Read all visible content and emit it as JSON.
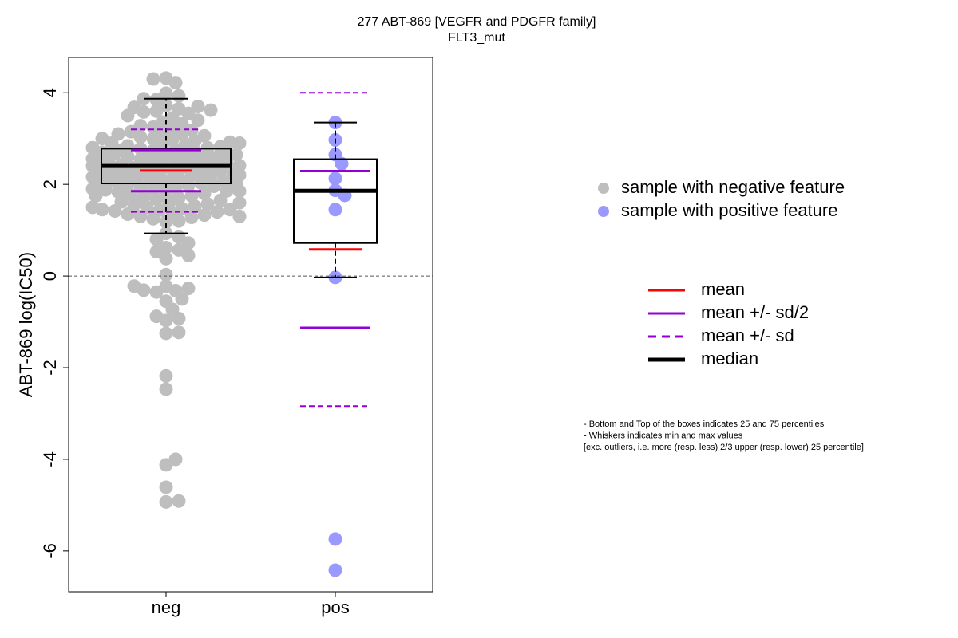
{
  "chart_data": {
    "type": "box",
    "title": "277 ABT-869 [VEGFR and PDGFR family]",
    "subtitle": "FLT3_mut",
    "y_label": "ABT-869 log(IC50)",
    "categories": [
      "neg",
      "pos"
    ],
    "ylim": [
      -6.89,
      4.77
    ],
    "yticks": [
      -6,
      -4,
      -2,
      0,
      2,
      4
    ],
    "reference_line": 0,
    "groups": [
      {
        "name": "sample with negative feature",
        "color": "#bebebe",
        "q1": 2.02,
        "median": 2.4,
        "q3": 2.78,
        "whisker_low": 0.93,
        "whisker_high": 3.87,
        "mean": 2.3,
        "mean_minus_half_sd": 1.85,
        "mean_plus_half_sd": 2.75,
        "mean_minus_sd": 1.4,
        "mean_plus_sd": 3.2,
        "points": [
          4.32,
          4.22,
          4.3,
          3.99,
          3.93,
          3.85,
          3.87,
          3.72,
          3.65,
          3.6,
          3.58,
          3.55,
          3.7,
          3.68,
          3.62,
          1.18,
          1.2,
          1.25,
          1.28,
          1.3,
          1.33,
          1.35,
          1.38,
          1.4,
          1.42,
          1.44,
          1.45,
          1.47,
          1.5,
          1.52,
          1.55,
          1.57,
          1.6,
          1.62,
          1.65,
          1.68,
          1.7,
          1.72,
          1.75,
          1.77,
          1.8,
          1.82,
          1.84,
          1.86,
          1.88,
          1.9,
          1.92,
          1.94,
          1.96,
          1.98,
          2.0,
          2.01,
          2.03,
          2.05,
          2.06,
          2.08,
          2.1,
          2.11,
          2.13,
          2.15,
          2.16,
          2.18,
          2.2,
          2.21,
          2.23,
          2.25,
          2.26,
          2.28,
          2.3,
          2.31,
          2.33,
          2.35,
          2.36,
          2.38,
          2.4,
          2.41,
          2.43,
          2.45,
          2.46,
          2.48,
          2.5,
          2.51,
          2.53,
          2.55,
          2.56,
          2.58,
          2.6,
          2.61,
          2.63,
          2.65,
          2.66,
          2.68,
          2.7,
          2.72,
          2.74,
          2.76,
          2.78,
          2.8,
          2.82,
          2.84,
          2.86,
          2.88,
          2.9,
          2.92,
          2.95,
          2.98,
          3.0,
          3.03,
          3.06,
          3.09,
          3.12,
          3.15,
          3.18,
          3.21,
          3.25,
          3.28,
          3.32,
          3.36,
          3.4,
          3.45,
          3.5,
          1.45,
          1.6,
          1.75,
          1.9,
          2.0,
          2.1,
          2.2,
          2.3,
          2.4,
          2.5,
          2.6,
          2.7,
          2.8,
          2.9,
          3.0,
          3.1,
          1.3,
          1.5,
          2.35,
          2.45,
          2.55,
          2.25,
          2.15,
          2.05,
          2.65,
          2.75,
          1.85,
          1.95,
          0.93,
          0.85,
          0.8,
          0.72,
          0.62,
          0.57,
          0.53,
          0.45,
          0.38,
          0.03,
          -0.22,
          -0.32,
          -0.35,
          -0.27,
          -0.31,
          -0.22,
          -0.55,
          -0.5,
          -0.73,
          -0.97,
          -0.93,
          -0.88,
          -1.25,
          -1.23,
          -2.18,
          -2.47,
          -4.12,
          -4.0,
          -4.61,
          -4.93,
          -4.91
        ]
      },
      {
        "name": "sample with positive feature",
        "color": "#9999ff",
        "q1": 0.72,
        "median": 1.86,
        "q3": 2.55,
        "whisker_low": -0.03,
        "whisker_high": 3.35,
        "mean": 0.58,
        "mean_minus_half_sd": -1.13,
        "mean_plus_half_sd": 2.29,
        "mean_minus_sd": -2.84,
        "mean_plus_sd": 4.0,
        "points": [
          3.35,
          2.97,
          2.65,
          2.45,
          2.13,
          1.87,
          1.76,
          1.45,
          -0.03,
          -5.74,
          -6.42
        ]
      }
    ],
    "stat_legend": [
      {
        "name": "mean",
        "color": "#ff0000",
        "style": "solid"
      },
      {
        "name": "mean +/- sd/2",
        "color": "#9400d3",
        "style": "solid"
      },
      {
        "name": "mean +/- sd",
        "color": "#9400d3",
        "style": "dashed"
      },
      {
        "name": "median",
        "color": "#000000",
        "style": "solid"
      }
    ],
    "notes": [
      "- Bottom and Top of the boxes indicates 25 and 75 percentiles",
      "- Whiskers indicates min and max values",
      "[exc. outliers, i.e. more (resp. less) 2/3 upper (resp. lower) 25 percentile]"
    ]
  }
}
